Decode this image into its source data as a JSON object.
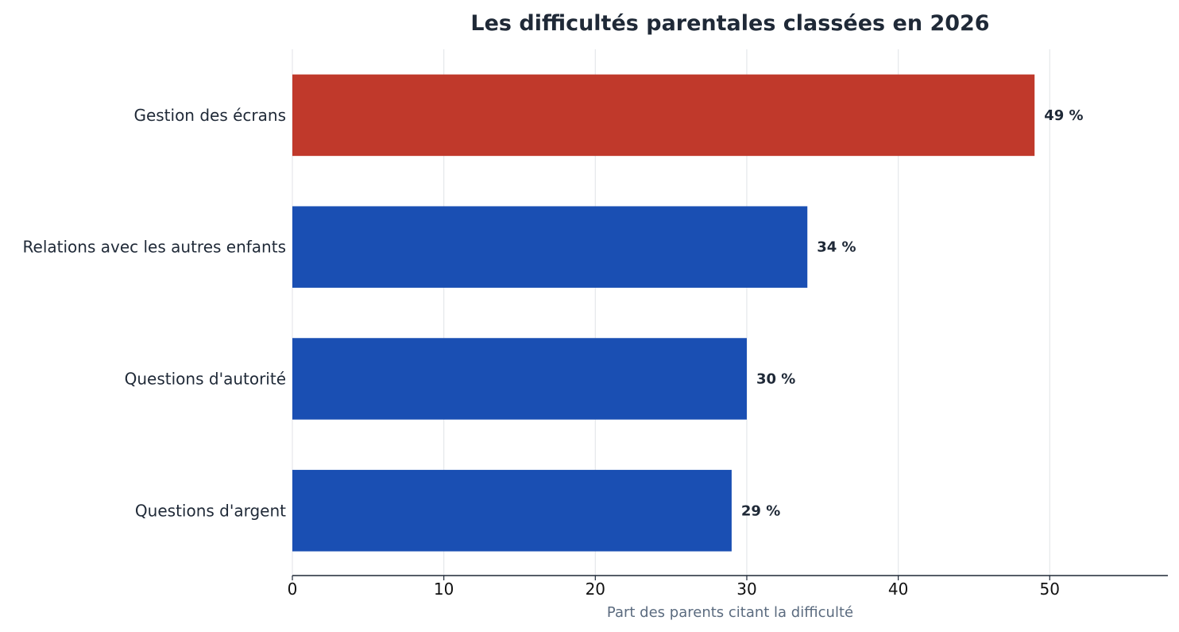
{
  "chart_data": {
    "type": "bar",
    "orientation": "horizontal",
    "title": "Les difficultés parentales classées en 2026",
    "xlabel": "Part des parents citant la difficulté",
    "ylabel": "",
    "categories": [
      "Gestion des écrans",
      "Relations avec les autres enfants",
      "Questions d'autorité",
      "Questions d'argent"
    ],
    "values": [
      49,
      34,
      30,
      29
    ],
    "value_labels": [
      "49 %",
      "34 %",
      "30 %",
      "29 %"
    ],
    "bar_colors": [
      "#c0392b",
      "#1a4fb3",
      "#1a4fb3",
      "#1a4fb3"
    ],
    "xlim": [
      0,
      57.8
    ],
    "xticks": [
      0,
      10,
      20,
      30,
      40,
      50
    ],
    "xtick_labels": [
      "0",
      "10",
      "20",
      "30",
      "40",
      "50"
    ],
    "grid": "vertical",
    "legend": "none"
  }
}
